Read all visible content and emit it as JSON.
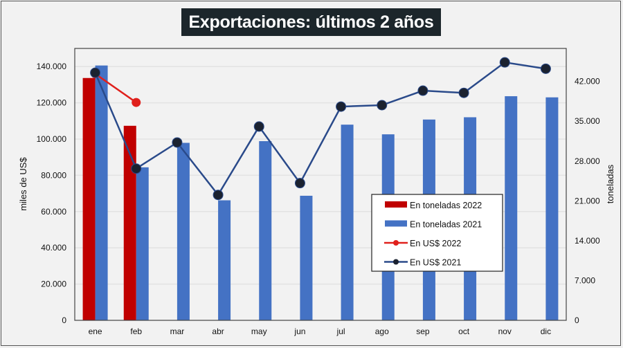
{
  "chart_data": {
    "type": "bar",
    "title": "Exportaciones: últimos 2 años",
    "categories": [
      "ene",
      "feb",
      "mar",
      "abr",
      "may",
      "jun",
      "jul",
      "ago",
      "sep",
      "oct",
      "nov",
      "dic"
    ],
    "ylabel_left": "miles de US$",
    "ylabel_right": "toneladas",
    "ylim_left": [
      0,
      150000
    ],
    "ylim_right": [
      0,
      47800
    ],
    "yticks_left": [
      "0",
      "20.000",
      "40.000",
      "60.000",
      "80.000",
      "100.000",
      "120.000",
      "140.000"
    ],
    "yticks_left_values": [
      0,
      20000,
      40000,
      60000,
      80000,
      100000,
      120000,
      140000
    ],
    "yticks_right": [
      "0",
      "7.000",
      "14.000",
      "21.000",
      "28.000",
      "35.000",
      "42.000"
    ],
    "yticks_right_values": [
      0,
      7000,
      14000,
      21000,
      28000,
      35000,
      42000
    ],
    "grid": true,
    "legend_position": "center-right",
    "series": [
      {
        "name": "En toneladas 2022",
        "kind": "bar",
        "axis": "right",
        "color": "#c00000",
        "values": [
          42600,
          34200,
          null,
          null,
          null,
          null,
          null,
          null,
          null,
          null,
          null,
          null
        ]
      },
      {
        "name": "En toneladas 2021",
        "kind": "bar",
        "axis": "right",
        "color": "#4472c4",
        "values": [
          44800,
          26900,
          31200,
          21100,
          31500,
          21900,
          34400,
          32700,
          35300,
          35700,
          39400,
          39200
        ]
      },
      {
        "name": "En US$ 2022",
        "kind": "line",
        "axis": "left",
        "color": "#e0201c",
        "values": [
          136000,
          120200,
          null,
          null,
          null,
          null,
          null,
          null,
          null,
          null,
          null,
          null
        ]
      },
      {
        "name": "En US$ 2021",
        "kind": "line",
        "axis": "left",
        "color": "#2a4a8a",
        "values": [
          136600,
          83700,
          98100,
          69200,
          106900,
          75700,
          117900,
          118700,
          126700,
          125500,
          142300,
          138800
        ]
      }
    ]
  }
}
